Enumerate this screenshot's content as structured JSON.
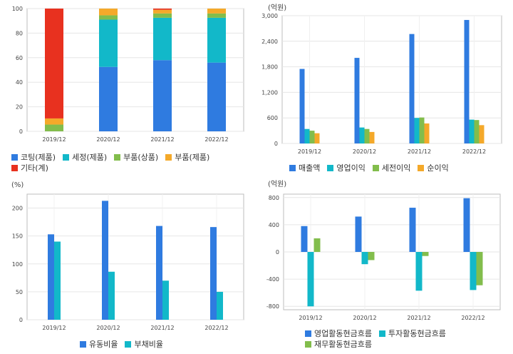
{
  "colors": {
    "blue": "#2f7be0",
    "cyan": "#12b8c9",
    "green": "#82bd4c",
    "orange": "#f4a92a",
    "red": "#e8311f"
  },
  "chart_data": [
    {
      "type": "bar",
      "stacked": true,
      "unit": "",
      "categories": [
        "2019/12",
        "2020/12",
        "2021/12",
        "2022/12"
      ],
      "ylim": [
        0,
        100
      ],
      "yticks": [
        0,
        20,
        40,
        60,
        80,
        100
      ],
      "series": [
        {
          "name": "코팅(제품)",
          "color": "blue",
          "values": [
            0,
            52.5,
            58,
            56
          ]
        },
        {
          "name": "세정(제품)",
          "color": "cyan",
          "values": [
            0,
            38.5,
            34.5,
            36.5
          ]
        },
        {
          "name": "부품(상품)",
          "color": "green",
          "values": [
            5.5,
            3.5,
            3.5,
            3.5
          ]
        },
        {
          "name": "부품(제품)",
          "color": "orange",
          "values": [
            5,
            5.5,
            3,
            4
          ]
        },
        {
          "name": "기타(계)",
          "color": "red",
          "values": [
            89.5,
            0,
            1,
            0
          ]
        }
      ],
      "grid": true,
      "legend": "bottom"
    },
    {
      "type": "bar",
      "unit": "(억원)",
      "categories": [
        "2019/12",
        "2020/12",
        "2021/12",
        "2022/12"
      ],
      "ylim": [
        0,
        3000
      ],
      "yticks": [
        0,
        600,
        1200,
        1800,
        2400,
        3000
      ],
      "yticklabels": [
        "0",
        "600",
        "1,200",
        "1,800",
        "2,400",
        "3,000"
      ],
      "series": [
        {
          "name": "매출액",
          "color": "blue",
          "values": [
            1750,
            2010,
            2570,
            2900
          ]
        },
        {
          "name": "영업이익",
          "color": "cyan",
          "values": [
            340,
            375,
            600,
            560
          ]
        },
        {
          "name": "세전이익",
          "color": "green",
          "values": [
            300,
            340,
            610,
            550
          ]
        },
        {
          "name": "순이익",
          "color": "orange",
          "values": [
            240,
            270,
            470,
            430
          ]
        }
      ],
      "grid": true,
      "legend": "bottom"
    },
    {
      "type": "bar",
      "unit": "(%)",
      "categories": [
        "2019/12",
        "2020/12",
        "2021/12",
        "2022/12"
      ],
      "ylim": [
        0,
        225
      ],
      "yticks": [
        0,
        50,
        100,
        150,
        200
      ],
      "series": [
        {
          "name": "유동비율",
          "color": "blue",
          "values": [
            153,
            213,
            168,
            166
          ]
        },
        {
          "name": "부채비율",
          "color": "cyan",
          "values": [
            140,
            86,
            70,
            50
          ]
        }
      ],
      "grid": true,
      "legend": "bottom"
    },
    {
      "type": "bar",
      "unit": "(억원)",
      "categories": [
        "2019/12",
        "2020/12",
        "2021/12",
        "2022/12"
      ],
      "ylim": [
        -850,
        850
      ],
      "yticks": [
        -800,
        -400,
        0,
        400,
        800
      ],
      "yticklabels": [
        "-800",
        "-400",
        "0",
        "400",
        "800"
      ],
      "series": [
        {
          "name": "영업활동현금흐름",
          "color": "blue",
          "values": [
            380,
            520,
            650,
            790
          ]
        },
        {
          "name": "투자활동현금흐름",
          "color": "cyan",
          "values": [
            -800,
            -180,
            -570,
            -560
          ]
        },
        {
          "name": "재무활동현금흐름",
          "color": "green",
          "values": [
            200,
            -120,
            -60,
            -490
          ]
        }
      ],
      "grid": true,
      "legend": "bottom"
    }
  ]
}
